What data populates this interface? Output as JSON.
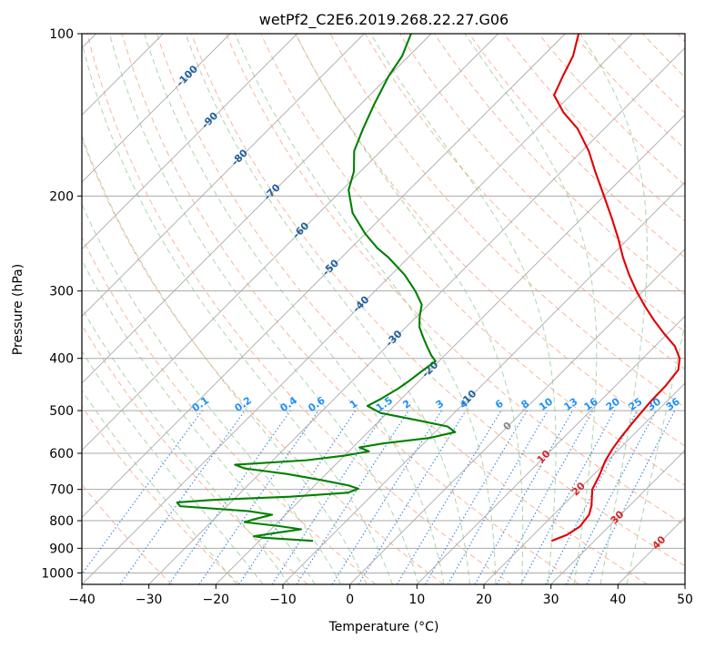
{
  "chart_data": {
    "type": "skew-t",
    "title": "wetPf2_C2E6.2019.268.22.27.G06",
    "xlabel": "Temperature (°C)",
    "ylabel": "Pressure (hPa)",
    "xlim": [
      -40,
      50
    ],
    "ylim": [
      1050,
      100
    ],
    "y_scale": "log",
    "grid": true,
    "x_ticks": [
      "−40",
      "−30",
      "−20",
      "−10",
      "0",
      "10",
      "20",
      "30",
      "40",
      "50"
    ],
    "x_tick_values": [
      -40,
      -30,
      -20,
      -10,
      0,
      10,
      20,
      30,
      40,
      50
    ],
    "y_ticks": [
      "100",
      "200",
      "300",
      "400",
      "500",
      "600",
      "700",
      "800",
      "900",
      "1000"
    ],
    "y_tick_values": [
      100,
      200,
      300,
      400,
      500,
      600,
      700,
      800,
      900,
      1000
    ],
    "series": [
      {
        "role": "temperature",
        "color": "#e00000",
        "points": [
          [
            872,
            23.6
          ],
          [
            850,
            25.0
          ],
          [
            820,
            25.7
          ],
          [
            780,
            25.3
          ],
          [
            750,
            24.3
          ],
          [
            700,
            22.0
          ],
          [
            660,
            21.0
          ],
          [
            620,
            19.7
          ],
          [
            590,
            19.0
          ],
          [
            560,
            18.5
          ],
          [
            520,
            18.0
          ],
          [
            480,
            17.6
          ],
          [
            450,
            17.5
          ],
          [
            420,
            17.0
          ],
          [
            400,
            15.5
          ],
          [
            380,
            13.0
          ],
          [
            360,
            9.5
          ],
          [
            340,
            6.0
          ],
          [
            320,
            2.5
          ],
          [
            300,
            -1.0
          ],
          [
            280,
            -4.5
          ],
          [
            260,
            -8.0
          ],
          [
            240,
            -11.5
          ],
          [
            220,
            -15.5
          ],
          [
            200,
            -20.0
          ],
          [
            180,
            -25.0
          ],
          [
            165,
            -29.0
          ],
          [
            150,
            -34.0
          ],
          [
            140,
            -38.5
          ],
          [
            130,
            -42.5
          ],
          [
            120,
            -44.0
          ],
          [
            110,
            -45.5
          ],
          [
            100,
            -48.0
          ]
        ]
      },
      {
        "role": "dewpoint",
        "color": "#008000",
        "points": [
          [
            872,
            -12.0
          ],
          [
            860,
            -20.0
          ],
          [
            855,
            -21.5
          ],
          [
            840,
            -18.0
          ],
          [
            830,
            -15.5
          ],
          [
            818,
            -19.5
          ],
          [
            805,
            -25.0
          ],
          [
            795,
            -24.0
          ],
          [
            780,
            -22.0
          ],
          [
            768,
            -26.0
          ],
          [
            752,
            -37.0
          ],
          [
            740,
            -38.0
          ],
          [
            732,
            -33.0
          ],
          [
            722,
            -22.0
          ],
          [
            710,
            -14.0
          ],
          [
            698,
            -13.0
          ],
          [
            688,
            -15.0
          ],
          [
            672,
            -20.0
          ],
          [
            655,
            -26.0
          ],
          [
            640,
            -33.0
          ],
          [
            630,
            -35.0
          ],
          [
            618,
            -25.0
          ],
          [
            606,
            -20.0
          ],
          [
            595,
            -17.0
          ],
          [
            585,
            -19.0
          ],
          [
            575,
            -16.0
          ],
          [
            562,
            -10.0
          ],
          [
            548,
            -7.0
          ],
          [
            535,
            -9.0
          ],
          [
            522,
            -14.0
          ],
          [
            505,
            -21.0
          ],
          [
            490,
            -24.0
          ],
          [
            475,
            -23.0
          ],
          [
            455,
            -22.0
          ],
          [
            440,
            -21.5
          ],
          [
            420,
            -21.0
          ],
          [
            405,
            -20.5
          ],
          [
            395,
            -22.0
          ],
          [
            380,
            -24.0
          ],
          [
            365,
            -26.0
          ],
          [
            350,
            -28.0
          ],
          [
            335,
            -29.5
          ],
          [
            318,
            -31.0
          ],
          [
            300,
            -34.0
          ],
          [
            280,
            -38.0
          ],
          [
            260,
            -43.0
          ],
          [
            250,
            -46.0
          ],
          [
            235,
            -50.0
          ],
          [
            215,
            -55.0
          ],
          [
            195,
            -59.0
          ],
          [
            180,
            -61.0
          ],
          [
            165,
            -64.0
          ],
          [
            150,
            -66.0
          ],
          [
            135,
            -68.0
          ],
          [
            120,
            -70.0
          ],
          [
            110,
            -71.0
          ],
          [
            100,
            -73.0
          ]
        ]
      }
    ],
    "dry_adiabat_labels": [
      "-100",
      "-90",
      "-80",
      "-70",
      "-60",
      "-50",
      "-40",
      "-30",
      "-20",
      "-10",
      "0",
      "10",
      "20",
      "30",
      "40"
    ],
    "mixing_ratio_labels": [
      "0.1",
      "0.2",
      "0.4",
      "0.6",
      "1",
      "1.5",
      "2",
      "3",
      "4",
      "6",
      "8",
      "10",
      "13",
      "16",
      "20",
      "25",
      "30",
      "36"
    ],
    "colors": {
      "isotherm": "#aaaaaa",
      "isobar": "#aaaaaa",
      "dry_adiabat": "#f4a582",
      "moist_adiabat": "#7fbf7f",
      "mixing_ratio": "#1f77e0",
      "dry_label": "#1f5f9f",
      "hot_label": "#d62728",
      "mixing_label": "#1e90ff",
      "zero_label": "#888888",
      "frame": "#000000"
    }
  }
}
